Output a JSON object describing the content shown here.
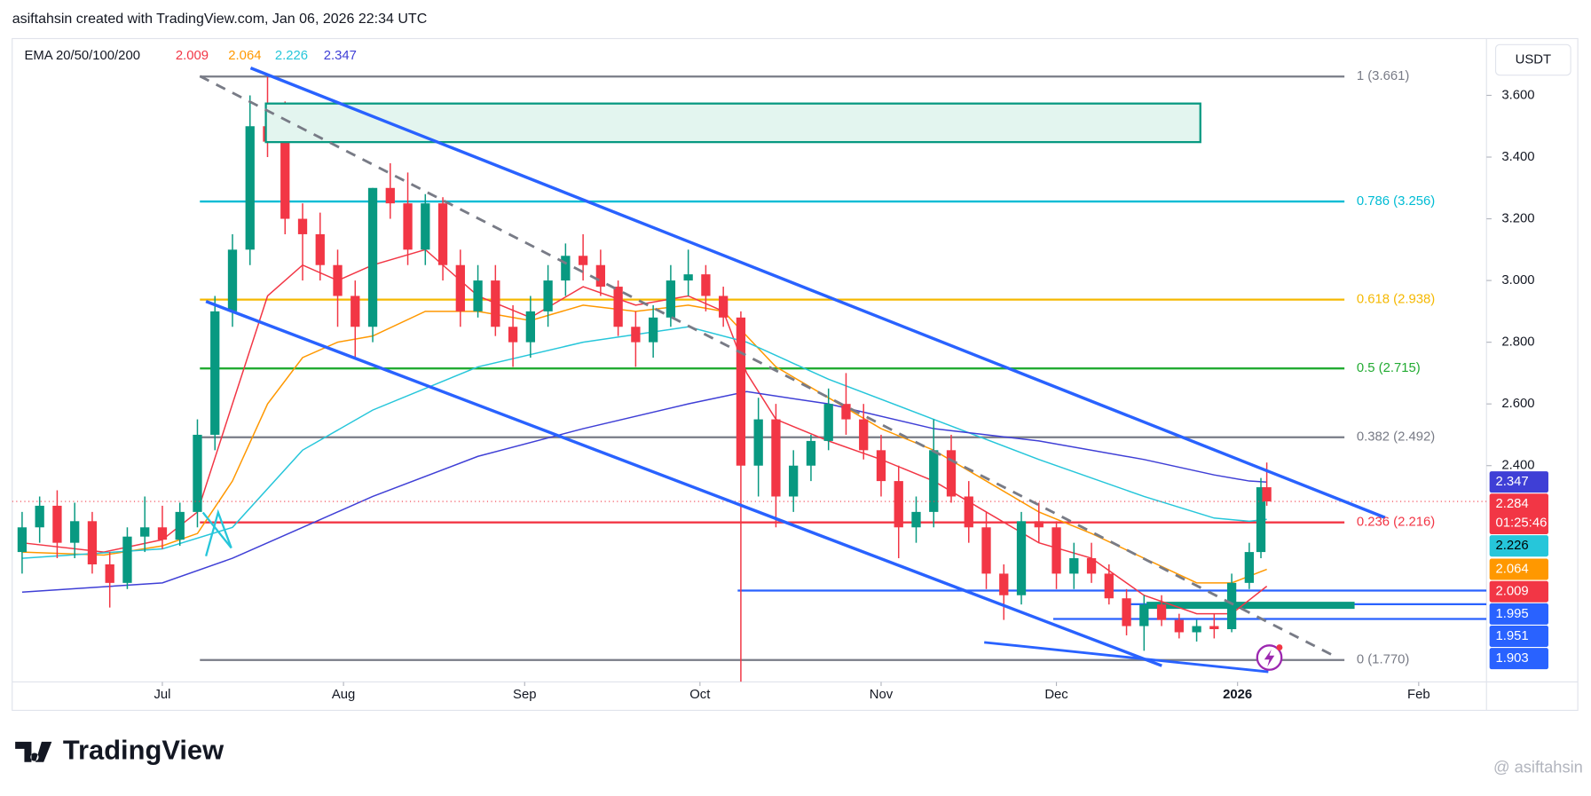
{
  "chart_data": {
    "type": "candlestick",
    "header": "asiftahsin created with TradingView.com, Jan 06, 2026 22:34 UTC",
    "legend_title": "EMA 20/50/100/200",
    "currency": "USDT",
    "countdown": "01:25:46",
    "brand": "TradingView",
    "watermark": "@ asiftahsin",
    "up_color": "#089981",
    "down_color": "#f23645",
    "x": [
      -24,
      -21,
      -18,
      -15,
      -12,
      -9,
      -6,
      -3,
      0,
      3,
      6,
      9,
      12,
      15,
      18,
      21,
      24,
      27,
      30,
      33,
      36,
      39,
      42,
      45,
      48,
      51,
      54,
      57,
      60,
      63,
      66,
      69,
      72,
      75,
      78,
      81,
      84,
      87,
      90,
      93,
      96,
      99,
      102,
      105,
      108,
      111,
      114,
      117,
      120,
      123,
      126,
      129,
      132,
      135,
      138,
      141,
      144,
      147,
      150,
      153,
      156,
      159,
      162,
      165,
      168,
      171,
      174,
      177,
      180,
      183,
      186,
      188,
      189
    ],
    "open": [
      2.12,
      2.2,
      2.27,
      2.15,
      2.22,
      2.08,
      2.02,
      2.17,
      2.2,
      2.16,
      2.25,
      2.5,
      2.9,
      3.1,
      3.5,
      3.45,
      3.2,
      3.15,
      3.05,
      2.95,
      2.85,
      3.3,
      3.25,
      3.1,
      3.25,
      3.05,
      2.9,
      3.0,
      2.85,
      2.8,
      2.9,
      3.0,
      3.08,
      3.05,
      2.98,
      2.85,
      2.8,
      2.88,
      3.0,
      3.02,
      2.95,
      2.88,
      2.4,
      2.55,
      2.3,
      2.4,
      2.48,
      2.6,
      2.55,
      2.45,
      2.35,
      2.2,
      2.25,
      2.45,
      2.3,
      2.2,
      2.05,
      1.98,
      2.22,
      2.2,
      2.05,
      2.1,
      2.05,
      1.97,
      1.88,
      1.95,
      1.9,
      1.86,
      1.88,
      1.87,
      2.02,
      2.12,
      2.33
    ],
    "high": [
      2.25,
      2.3,
      2.32,
      2.28,
      2.25,
      2.12,
      2.2,
      2.3,
      2.27,
      2.28,
      2.55,
      2.95,
      3.15,
      3.6,
      3.66,
      3.58,
      3.25,
      3.22,
      3.1,
      3.0,
      3.3,
      3.38,
      3.35,
      3.28,
      3.27,
      3.1,
      3.05,
      3.05,
      2.92,
      2.95,
      3.05,
      3.12,
      3.15,
      3.1,
      3.0,
      2.9,
      2.92,
      3.05,
      3.1,
      3.05,
      2.98,
      2.9,
      2.62,
      2.6,
      2.45,
      2.5,
      2.65,
      2.7,
      2.6,
      2.5,
      2.4,
      2.3,
      2.55,
      2.5,
      2.35,
      2.25,
      2.08,
      2.25,
      2.28,
      2.22,
      2.15,
      2.15,
      2.08,
      2.0,
      1.98,
      1.98,
      1.92,
      1.9,
      1.92,
      2.05,
      2.15,
      2.36,
      2.41
    ],
    "low": [
      2.05,
      2.15,
      2.1,
      2.1,
      2.05,
      1.94,
      2.0,
      2.12,
      2.13,
      2.14,
      2.2,
      2.45,
      2.85,
      3.05,
      3.4,
      3.15,
      3.0,
      3.0,
      2.85,
      2.75,
      2.8,
      3.2,
      3.05,
      3.05,
      3.0,
      2.85,
      2.88,
      2.82,
      2.72,
      2.75,
      2.85,
      2.95,
      3.0,
      2.95,
      2.82,
      2.72,
      2.75,
      2.85,
      2.95,
      2.9,
      2.85,
      1.7,
      2.3,
      2.2,
      2.25,
      2.35,
      2.45,
      2.5,
      2.42,
      2.3,
      2.1,
      2.15,
      2.2,
      2.28,
      2.15,
      2.0,
      1.9,
      1.95,
      2.15,
      2.0,
      2.0,
      2.02,
      1.95,
      1.85,
      1.8,
      1.88,
      1.84,
      1.83,
      1.84,
      1.86,
      2.0,
      2.1,
      2.27
    ],
    "close": [
      2.2,
      2.27,
      2.15,
      2.22,
      2.08,
      2.02,
      2.17,
      2.2,
      2.16,
      2.25,
      2.5,
      2.9,
      3.1,
      3.5,
      3.45,
      3.2,
      3.15,
      3.05,
      2.95,
      2.85,
      3.3,
      3.25,
      3.1,
      3.25,
      3.05,
      2.9,
      3.0,
      2.85,
      2.8,
      2.9,
      3.0,
      3.08,
      3.05,
      2.98,
      2.85,
      2.8,
      2.88,
      3.0,
      3.02,
      2.95,
      2.88,
      2.4,
      2.55,
      2.3,
      2.4,
      2.48,
      2.6,
      2.55,
      2.45,
      2.35,
      2.2,
      2.25,
      2.45,
      2.3,
      2.2,
      2.05,
      1.98,
      2.22,
      2.2,
      2.05,
      2.1,
      2.05,
      1.97,
      1.88,
      1.95,
      1.9,
      1.86,
      1.88,
      1.87,
      2.02,
      2.12,
      2.33,
      2.284
    ],
    "series": [
      {
        "color": "#f23645",
        "x": [
          -24,
          -10,
          0,
          6,
          12,
          18,
          24,
          30,
          36,
          45,
          54,
          63,
          72,
          81,
          90,
          96,
          100,
          105,
          114,
          123,
          132,
          141,
          150,
          159,
          168,
          177,
          183,
          189
        ],
        "values": [
          2.15,
          2.12,
          2.16,
          2.25,
          2.6,
          2.95,
          3.05,
          3.0,
          3.05,
          3.1,
          2.95,
          2.88,
          2.98,
          2.92,
          2.95,
          2.9,
          2.7,
          2.55,
          2.48,
          2.42,
          2.35,
          2.25,
          2.15,
          2.1,
          1.98,
          1.92,
          1.92,
          2.009
        ]
      },
      {
        "color": "#ff9800",
        "x": [
          -24,
          -10,
          0,
          6,
          12,
          18,
          24,
          30,
          36,
          45,
          54,
          63,
          72,
          81,
          90,
          96,
          100,
          105,
          114,
          123,
          132,
          141,
          150,
          159,
          168,
          177,
          183,
          189
        ],
        "values": [
          2.12,
          2.11,
          2.14,
          2.18,
          2.35,
          2.6,
          2.75,
          2.8,
          2.82,
          2.9,
          2.9,
          2.87,
          2.92,
          2.9,
          2.92,
          2.9,
          2.82,
          2.72,
          2.62,
          2.52,
          2.45,
          2.35,
          2.25,
          2.18,
          2.1,
          2.02,
          2.02,
          2.064
        ]
      },
      {
        "color": "#26c6da",
        "x": [
          -24,
          0,
          12,
          24,
          36,
          54,
          72,
          90,
          100,
          114,
          132,
          150,
          168,
          180,
          186,
          189
        ],
        "values": [
          2.1,
          2.13,
          2.2,
          2.45,
          2.58,
          2.72,
          2.8,
          2.85,
          2.8,
          2.68,
          2.55,
          2.42,
          2.3,
          2.23,
          2.22,
          2.226
        ]
      },
      {
        "color": "#3f3fd6",
        "x": [
          -24,
          0,
          12,
          24,
          36,
          54,
          72,
          90,
          100,
          114,
          132,
          150,
          168,
          180,
          186,
          189
        ],
        "values": [
          1.99,
          2.02,
          2.1,
          2.2,
          2.3,
          2.43,
          2.52,
          2.6,
          2.64,
          2.6,
          2.52,
          2.48,
          2.42,
          2.37,
          2.35,
          2.347
        ]
      }
    ],
    "fib": [
      {
        "label": "1 (3.661)",
        "value": 3.661,
        "color": "#787b86"
      },
      {
        "label": "0.786 (3.256)",
        "value": 3.256,
        "color": "#00bcd4"
      },
      {
        "label": "0.618 (2.938)",
        "value": 2.938,
        "color": "#f5b800"
      },
      {
        "label": "0.5 (2.715)",
        "value": 2.715,
        "color": "#22ab32"
      },
      {
        "label": "0.382 (2.492)",
        "value": 2.492,
        "color": "#787b86"
      },
      {
        "label": "0.236 (2.216)",
        "value": 2.216,
        "color": "#f23645"
      },
      {
        "label": "0 (1.770)",
        "value": 1.77,
        "color": "#787b86"
      }
    ],
    "levels": [
      1.995,
      1.951,
      1.903
    ],
    "level_color": "#2962ff",
    "xlim": [
      -25.7,
      226.6
    ],
    "ylim": [
      1.699,
      3.784
    ],
    "xticks": [
      {
        "value": 0,
        "label": "Jul"
      },
      {
        "value": 31,
        "label": "Aug"
      },
      {
        "value": 62,
        "label": "Sep"
      },
      {
        "value": 92,
        "label": "Oct"
      },
      {
        "value": 123,
        "label": "Nov"
      },
      {
        "value": 153,
        "label": "Dec"
      },
      {
        "value": 184,
        "label": "2026"
      },
      {
        "value": 215,
        "label": "Feb"
      }
    ],
    "yticks": [
      {
        "value": 3.6,
        "label": "3.600"
      },
      {
        "value": 3.4,
        "label": "3.400"
      },
      {
        "value": 3.2,
        "label": "3.200"
      },
      {
        "value": 3.0,
        "label": "3.000"
      },
      {
        "value": 2.8,
        "label": "2.800"
      },
      {
        "value": 2.6,
        "label": "2.600"
      },
      {
        "value": 2.4,
        "label": "2.400"
      }
    ]
  }
}
